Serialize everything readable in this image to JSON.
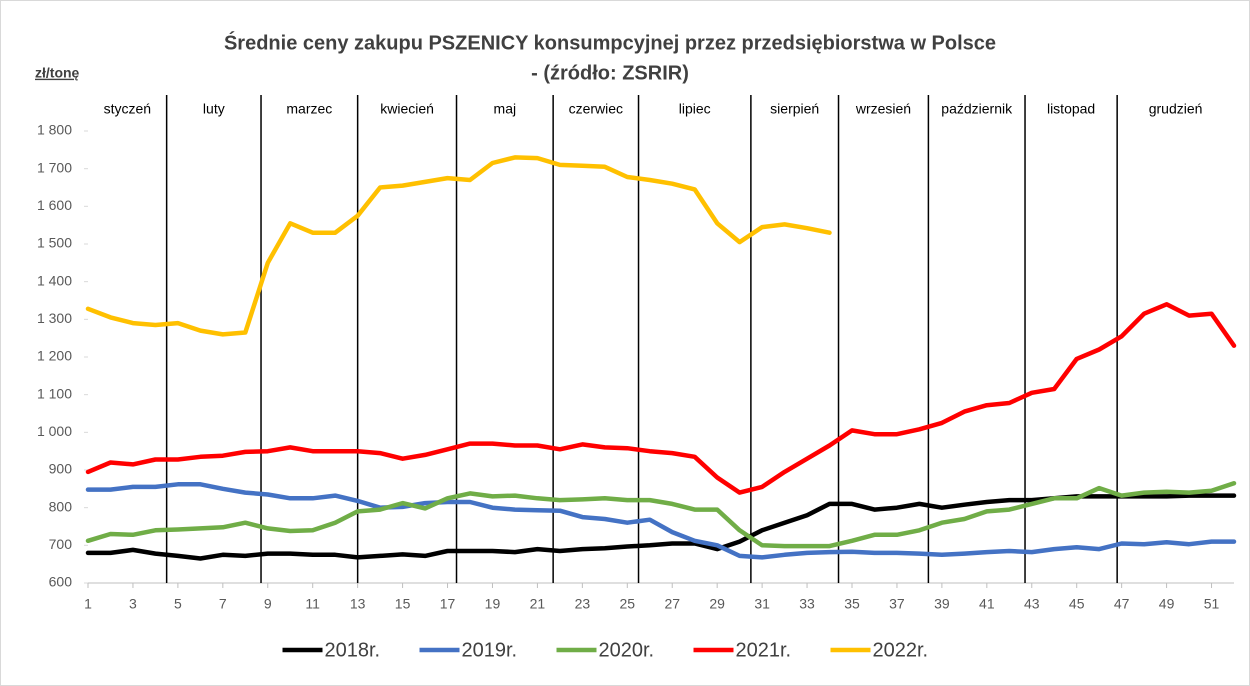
{
  "chart_data": {
    "type": "line",
    "title": "Średnie ceny zakupu PSZENICY konsumpcyjnej przez przedsiębiorstwa w Polsce",
    "subtitle": "- (źródło: ZSRIR)",
    "y_label": "zł/tonę",
    "x": [
      1,
      2,
      3,
      4,
      5,
      6,
      7,
      8,
      9,
      10,
      11,
      12,
      13,
      14,
      15,
      16,
      17,
      18,
      19,
      20,
      21,
      22,
      23,
      24,
      25,
      26,
      27,
      28,
      29,
      30,
      31,
      32,
      33,
      34,
      35,
      36,
      37,
      38,
      39,
      40,
      41,
      42,
      43,
      44,
      45,
      46,
      47,
      48,
      49,
      50,
      51,
      52
    ],
    "xlim": [
      1,
      52
    ],
    "xticks": [
      1,
      3,
      5,
      7,
      9,
      11,
      13,
      15,
      17,
      19,
      21,
      23,
      25,
      27,
      29,
      31,
      33,
      35,
      37,
      39,
      41,
      43,
      45,
      47,
      49,
      51
    ],
    "ylim": [
      600,
      1800
    ],
    "yticks": [
      600,
      700,
      800,
      900,
      {
        "value": 1000,
        "label": "1 000"
      },
      {
        "value": 1100,
        "label": "1 100"
      },
      {
        "value": 1200,
        "label": "1 200"
      },
      {
        "value": 1300,
        "label": "1 300"
      },
      {
        "value": 1400,
        "label": "1 400"
      },
      {
        "value": 1500,
        "label": "1 500"
      },
      {
        "value": 1600,
        "label": "1 600"
      },
      {
        "value": 1700,
        "label": "1 700"
      },
      {
        "value": 1800,
        "label": "1 800"
      }
    ],
    "months": [
      "styczeń",
      "luty",
      "marzec",
      "kwiecień",
      "maj",
      "czerwiec",
      "lipiec",
      "sierpień",
      "wrzesień",
      "październik",
      "listopad",
      "grudzień"
    ],
    "month_boundaries": [
      4.5,
      8.7,
      13,
      17.4,
      21.7,
      25.5,
      30.5,
      34.4,
      38.4,
      42.7,
      46.8
    ],
    "legend": "bottom",
    "series": [
      {
        "name": "2018r.",
        "color": "#000000",
        "values": [
          680,
          680,
          688,
          678,
          672,
          665,
          675,
          672,
          678,
          678,
          675,
          675,
          668,
          672,
          676,
          672,
          685,
          685,
          685,
          682,
          690,
          685,
          690,
          692,
          697,
          700,
          705,
          705,
          690,
          710,
          740,
          760,
          780,
          810,
          810,
          795,
          800,
          810,
          800,
          808,
          815,
          820,
          820,
          825,
          830,
          830,
          830,
          830,
          830,
          832,
          832,
          832
        ]
      },
      {
        "name": "2019r.",
        "color": "#4472c4",
        "values": [
          848,
          848,
          855,
          855,
          862,
          862,
          850,
          840,
          835,
          825,
          825,
          832,
          818,
          800,
          802,
          812,
          815,
          815,
          800,
          795,
          793,
          792,
          775,
          770,
          760,
          768,
          735,
          712,
          700,
          672,
          668,
          675,
          680,
          682,
          683,
          680,
          680,
          678,
          675,
          678,
          682,
          685,
          682,
          690,
          695,
          690,
          705,
          703,
          708,
          703,
          710,
          710
        ]
      },
      {
        "name": "2020r.",
        "color": "#70ad47",
        "values": [
          712,
          730,
          728,
          740,
          742,
          745,
          748,
          760,
          745,
          738,
          740,
          760,
          790,
          795,
          812,
          798,
          825,
          838,
          830,
          832,
          825,
          820,
          822,
          825,
          820,
          820,
          810,
          795,
          795,
          740,
          700,
          698,
          698,
          698,
          712,
          728,
          728,
          740,
          760,
          770,
          790,
          795,
          810,
          825,
          825,
          852,
          832,
          840,
          842,
          840,
          845,
          865
        ]
      },
      {
        "name": "2021r.",
        "color": "#ff0000",
        "values": [
          895,
          920,
          915,
          928,
          928,
          935,
          938,
          948,
          950,
          960,
          950,
          950,
          950,
          945,
          930,
          940,
          955,
          970,
          970,
          965,
          965,
          955,
          968,
          960,
          958,
          950,
          945,
          935,
          880,
          840,
          855,
          895,
          930,
          965,
          1005,
          995,
          995,
          1008,
          1025,
          1055,
          1072,
          1078,
          1105,
          1115,
          1195,
          1220,
          1255,
          1315,
          1340,
          1310,
          1315,
          1230
        ]
      },
      {
        "name": "2022r.",
        "color": "#ffc000",
        "values": [
          1328,
          1305,
          1290,
          1285,
          1290,
          1270,
          1260,
          1265,
          1450,
          1555,
          1530,
          1530,
          1575,
          1650,
          1655,
          1665,
          1675,
          1670,
          1715,
          1730,
          1728,
          1710,
          1708,
          1705,
          1678,
          1670,
          1660,
          1645,
          1555,
          1505,
          1545,
          1552,
          1542,
          1530,
          null,
          null,
          null,
          null,
          null,
          null,
          null,
          null,
          null,
          null,
          null,
          null,
          null,
          null,
          null,
          null,
          null,
          null
        ]
      }
    ]
  }
}
